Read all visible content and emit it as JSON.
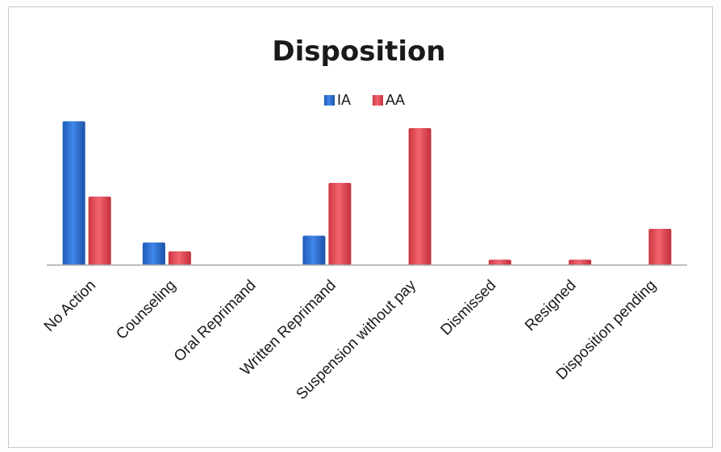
{
  "chart_data": {
    "type": "bar",
    "title": "Disposition",
    "xlabel": "",
    "ylabel": "",
    "categories": [
      "No Action",
      "Counseling",
      "Oral Reprimand",
      "Written Reprimand",
      "Suspension without pay",
      "Dismissed",
      "Resigned",
      "Disposition pending"
    ],
    "series": [
      {
        "name": "IA",
        "color": "#2e6fd4",
        "values": [
          21,
          3.3,
          0,
          4.3,
          0,
          0,
          0,
          0
        ]
      },
      {
        "name": "AA",
        "color": "#e84c55",
        "values": [
          10,
          2,
          0,
          12,
          20,
          0.8,
          0.8,
          5.3
        ]
      }
    ],
    "ylim": [
      0,
      22
    ],
    "grid": false,
    "legend_position": "top"
  }
}
